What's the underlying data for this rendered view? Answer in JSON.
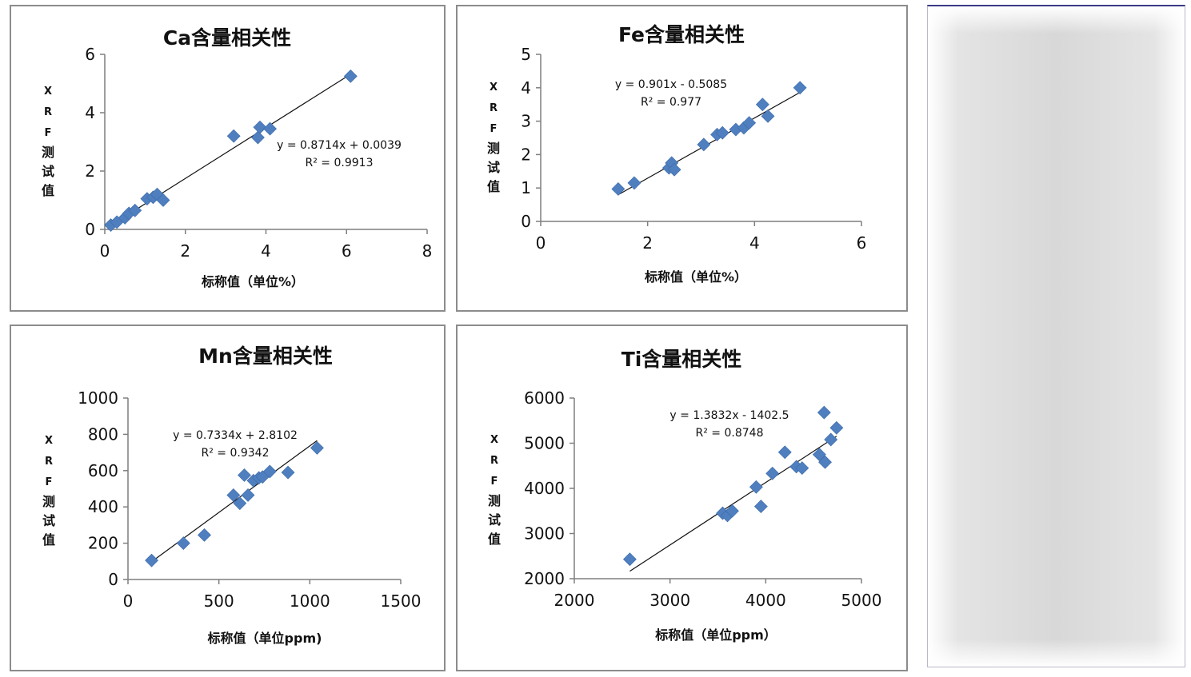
{
  "chart_data": [
    {
      "type": "scatter",
      "title": "Ca含量相关性",
      "xlabel": "标称值（单位%）",
      "ylabel": "XRF测试值",
      "xlim": [
        0,
        8
      ],
      "ylim": [
        0,
        6
      ],
      "xticks": [
        "0",
        "2",
        "4",
        "6",
        "8"
      ],
      "yticks": [
        "0",
        "2",
        "4",
        "6"
      ],
      "points": [
        {
          "x": 0.15,
          "y": 0.15
        },
        {
          "x": 0.3,
          "y": 0.25
        },
        {
          "x": 0.5,
          "y": 0.4
        },
        {
          "x": 0.6,
          "y": 0.55
        },
        {
          "x": 0.75,
          "y": 0.65
        },
        {
          "x": 1.05,
          "y": 1.05
        },
        {
          "x": 1.2,
          "y": 1.1
        },
        {
          "x": 1.3,
          "y": 1.2
        },
        {
          "x": 1.45,
          "y": 1.0
        },
        {
          "x": 3.2,
          "y": 3.2
        },
        {
          "x": 3.8,
          "y": 3.15
        },
        {
          "x": 3.85,
          "y": 3.5
        },
        {
          "x": 4.1,
          "y": 3.45
        },
        {
          "x": 6.1,
          "y": 5.25
        }
      ],
      "trendline": {
        "slope": 0.8714,
        "intercept": 0.0039,
        "x_range": [
          0.1,
          6.1
        ]
      },
      "equation": "y = 0.8714x + 0.0039",
      "r_squared": "R² = 0.9913",
      "marker_color": "#4f7fbf"
    },
    {
      "type": "scatter",
      "title": "Fe含量相关性",
      "xlabel": "标称值（单位%）",
      "ylabel": "XRF测试值",
      "xlim": [
        0,
        6
      ],
      "ylim": [
        0,
        5
      ],
      "xticks": [
        "0",
        "2",
        "4",
        "6"
      ],
      "yticks": [
        "0",
        "1",
        "2",
        "3",
        "4",
        "5"
      ],
      "points": [
        {
          "x": 1.45,
          "y": 0.97
        },
        {
          "x": 1.75,
          "y": 1.15
        },
        {
          "x": 2.4,
          "y": 1.6
        },
        {
          "x": 2.45,
          "y": 1.75
        },
        {
          "x": 2.5,
          "y": 1.55
        },
        {
          "x": 3.05,
          "y": 2.3
        },
        {
          "x": 3.3,
          "y": 2.6
        },
        {
          "x": 3.4,
          "y": 2.65
        },
        {
          "x": 3.65,
          "y": 2.75
        },
        {
          "x": 3.8,
          "y": 2.8
        },
        {
          "x": 3.9,
          "y": 2.95
        },
        {
          "x": 4.15,
          "y": 3.5
        },
        {
          "x": 4.25,
          "y": 3.15
        },
        {
          "x": 4.85,
          "y": 4.0
        }
      ],
      "trendline": {
        "slope": 0.901,
        "intercept": -0.5085,
        "x_range": [
          1.45,
          4.85
        ]
      },
      "equation": "y = 0.901x - 0.5085",
      "r_squared": "R² = 0.977",
      "marker_color": "#4f7fbf"
    },
    {
      "type": "scatter",
      "title": "Mn含量相关性",
      "xlabel": "标称值（单位ppm)",
      "ylabel": "XRF测试值",
      "xlim": [
        0,
        1500
      ],
      "ylim": [
        0,
        1000
      ],
      "xticks": [
        "0",
        "500",
        "1000",
        "1500"
      ],
      "yticks": [
        "0",
        "200",
        "400",
        "600",
        "800",
        "1000"
      ],
      "points": [
        {
          "x": 130,
          "y": 105
        },
        {
          "x": 305,
          "y": 200
        },
        {
          "x": 420,
          "y": 245
        },
        {
          "x": 580,
          "y": 465
        },
        {
          "x": 615,
          "y": 420
        },
        {
          "x": 640,
          "y": 575
        },
        {
          "x": 660,
          "y": 465
        },
        {
          "x": 690,
          "y": 545
        },
        {
          "x": 720,
          "y": 560
        },
        {
          "x": 740,
          "y": 565
        },
        {
          "x": 780,
          "y": 595
        },
        {
          "x": 880,
          "y": 590
        },
        {
          "x": 1040,
          "y": 725
        }
      ],
      "trendline": {
        "slope": 0.7334,
        "intercept": 2.8102,
        "x_range": [
          130,
          1040
        ]
      },
      "equation": "y = 0.7334x + 2.8102",
      "r_squared": "R² = 0.9342",
      "marker_color": "#4f7fbf"
    },
    {
      "type": "scatter",
      "title": "Ti含量相关性",
      "xlabel": "标称值（单位ppm）",
      "ylabel": "XRF测试值",
      "xlim": [
        2000,
        5000
      ],
      "ylim": [
        2000,
        6000
      ],
      "xticks": [
        "2000",
        "3000",
        "4000",
        "5000"
      ],
      "yticks": [
        "2000",
        "3000",
        "4000",
        "5000",
        "6000"
      ],
      "points": [
        {
          "x": 2580,
          "y": 2430
        },
        {
          "x": 3550,
          "y": 3450
        },
        {
          "x": 3600,
          "y": 3400
        },
        {
          "x": 3650,
          "y": 3500
        },
        {
          "x": 3900,
          "y": 4030
        },
        {
          "x": 3950,
          "y": 3600
        },
        {
          "x": 4070,
          "y": 4330
        },
        {
          "x": 4200,
          "y": 4800
        },
        {
          "x": 4320,
          "y": 4480
        },
        {
          "x": 4380,
          "y": 4450
        },
        {
          "x": 4560,
          "y": 4750
        },
        {
          "x": 4610,
          "y": 5680
        },
        {
          "x": 4620,
          "y": 4580
        },
        {
          "x": 4680,
          "y": 5080
        },
        {
          "x": 4740,
          "y": 5340
        }
      ],
      "trendline": {
        "slope": 1.3832,
        "intercept": -1402.5,
        "x_range": [
          2580,
          4740
        ]
      },
      "equation": "y = 1.3832x - 1402.5",
      "r_squared": "R² = 0.8748",
      "marker_color": "#4f7fbf"
    }
  ]
}
